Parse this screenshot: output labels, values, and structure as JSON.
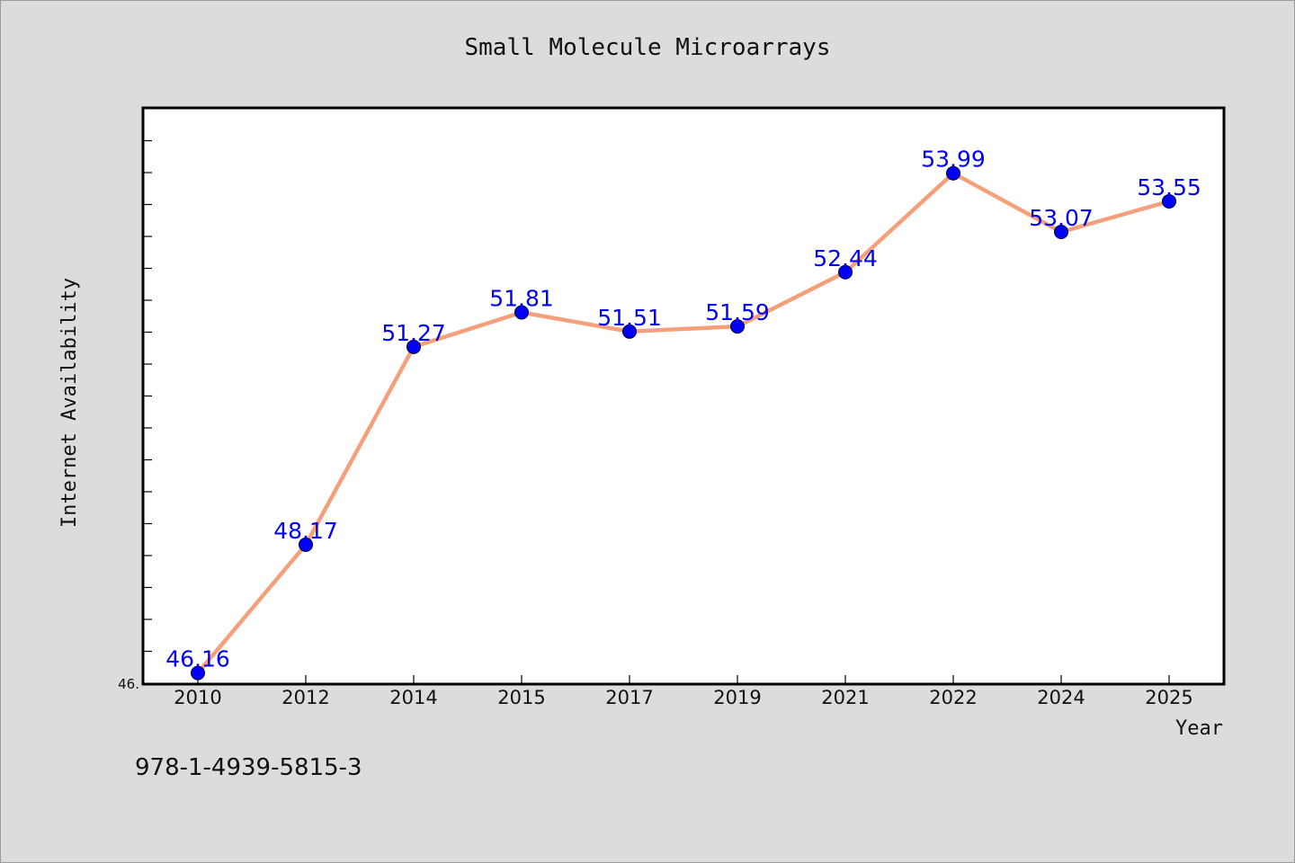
{
  "chart_data": {
    "type": "line",
    "title": "Small Molecule Microarrays",
    "xlabel": "Year",
    "ylabel": "Internet Availability",
    "categories": [
      "2010",
      "2012",
      "2014",
      "2015",
      "2017",
      "2019",
      "2021",
      "2022",
      "2024",
      "2025"
    ],
    "series": [
      {
        "values": [
          46.16,
          48.17,
          51.27,
          51.81,
          51.51,
          51.59,
          52.44,
          53.99,
          53.07,
          53.55
        ],
        "data_labels": [
          "46.16",
          "48.17",
          "51.27",
          "51.81",
          "51.51",
          "51.59",
          "52.44",
          "53.99",
          "53.07",
          "53.55"
        ]
      }
    ],
    "ylim": [
      46.0,
      55.0
    ],
    "y_tick_labels": [
      "46."
    ],
    "grid": false,
    "legend": "none",
    "colors": {
      "line": "#f5a07a",
      "marker": "#0000ff",
      "data_label": "#0000ff",
      "plot_background": "#ffffff",
      "figure_background": "#dcdcdc"
    }
  },
  "footer": {
    "isbn": "978-1-4939-5815-3"
  }
}
